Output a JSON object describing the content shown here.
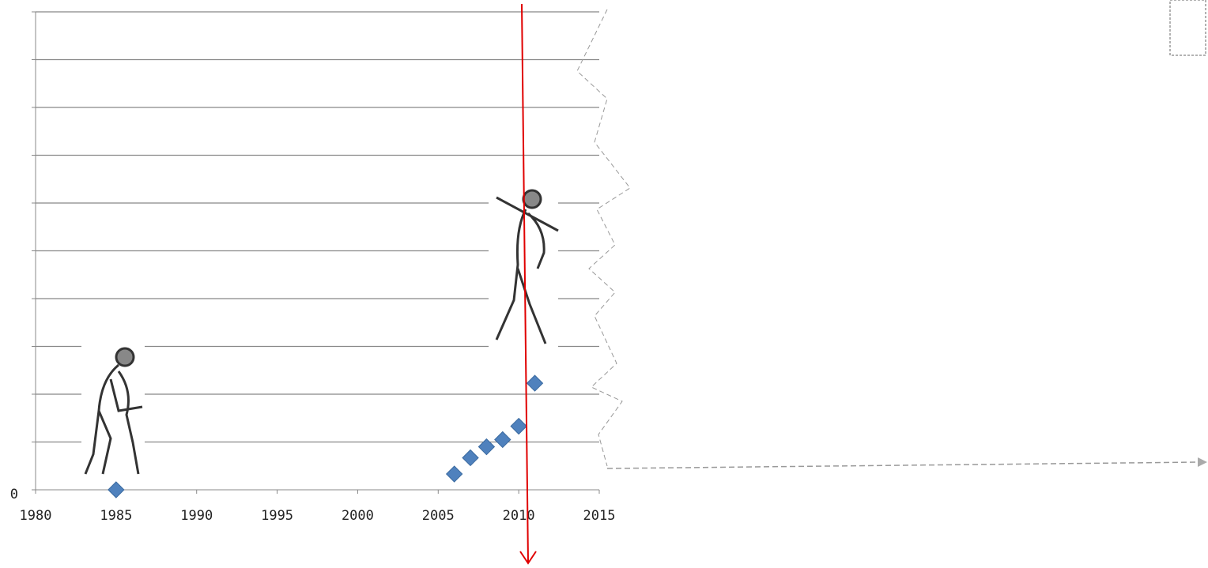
{
  "chart_data": {
    "type": "scatter",
    "series": [
      {
        "color": "#4f81bd",
        "x": [
          1985,
          2006,
          2007,
          2008,
          2009,
          2010,
          2011
        ],
        "values": [
          0,
          0.33,
          0.67,
          0.9,
          1.05,
          1.33,
          2.23
        ]
      }
    ],
    "xlim": [
      1980,
      2015
    ],
    "xticks": [
      1980,
      1985,
      1990,
      1995,
      2000,
      2005,
      2010,
      2015
    ],
    "ylim": [
      0,
      10
    ],
    "yticks": [
      0,
      {
        "value": 1,
        "label": null
      },
      {
        "value": 2,
        "label": null
      },
      {
        "value": 3,
        "label": null
      },
      {
        "value": 4,
        "label": null
      },
      {
        "value": 5,
        "label": null
      },
      {
        "value": 6,
        "label": null
      },
      {
        "value": 7,
        "label": null
      },
      {
        "value": 8,
        "label": null
      },
      {
        "value": 9,
        "label": null
      },
      {
        "value": 10,
        "label": null
      }
    ],
    "grid": true
  }
}
